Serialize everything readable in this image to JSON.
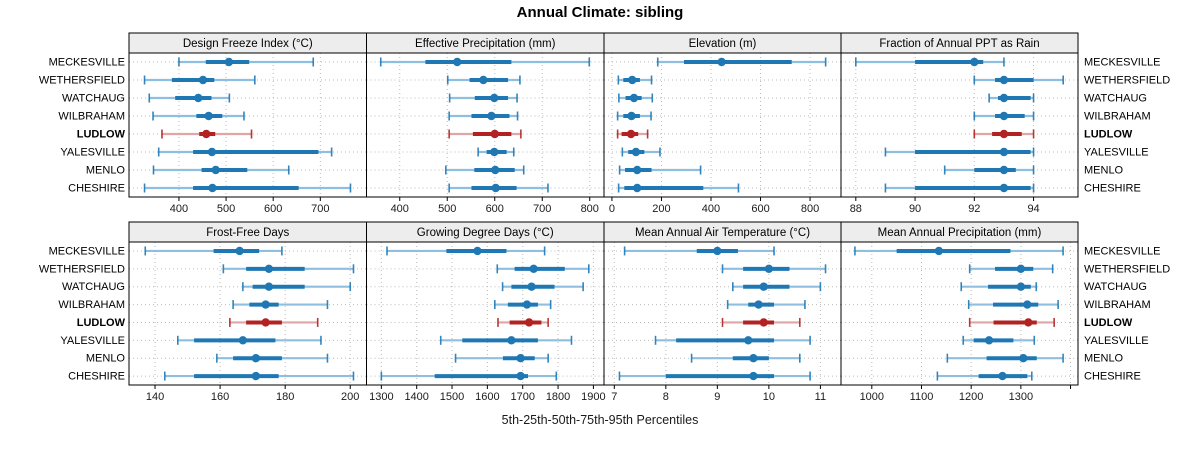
{
  "chart_data": {
    "type": "dotplot-percentiles",
    "title": "Annual Climate: sibling",
    "caption": "5th-25th-50th-75th-95th Percentiles",
    "percentiles": [
      5,
      25,
      50,
      75,
      95
    ],
    "rows_top_to_bottom": [
      "MECKESVILLE",
      "WETHERSFIELD",
      "WATCHAUG",
      "WILBRAHAM",
      "LUDLOW",
      "YALESVILLE",
      "MENLO",
      "CHESHIRE"
    ],
    "highlight_row": "LUDLOW",
    "legend_position": "none",
    "grid": "dotted",
    "colors": {
      "series": "#1f78b4",
      "series_light": "#8fbfe0",
      "highlight": "#b22222",
      "highlight_light": "#dea6a6",
      "strip_bg": "#ededed",
      "panel_border": "#000000",
      "grid": "#bbbbbb"
    },
    "panel_rows": [
      {
        "panels": [
          {
            "title": "Design Freeze Index (°C)",
            "xlim": [
              294,
              798
            ],
            "ticks": [
              400,
              500,
              600,
              700
            ],
            "unlabeled_ticks": [],
            "values": [
              [
                400,
                457,
                506,
                549,
                685
              ],
              [
                327,
                385,
                451,
                475,
                561
              ],
              [
                337,
                392,
                441,
                469,
                507
              ],
              [
                345,
                437,
                463,
                492,
                538
              ],
              [
                364,
                443,
                458,
                477,
                554
              ],
              [
                357,
                430,
                470,
                696,
                724
              ],
              [
                346,
                448,
                478,
                545,
                633
              ],
              [
                327,
                430,
                471,
                654,
                764
              ]
            ]
          },
          {
            "title": "Effective Precipitation (mm)",
            "xlim": [
              330,
              830
            ],
            "ticks": [
              400,
              500,
              600,
              700,
              800
            ],
            "unlabeled_ticks": [],
            "values": [
              [
                360,
                454,
                521,
                635,
                799
              ],
              [
                501,
                547,
                576,
                628,
                653
              ],
              [
                505,
                558,
                599,
                628,
                647
              ],
              [
                504,
                551,
                593,
                631,
                648
              ],
              [
                504,
                554,
                600,
                635,
                655
              ],
              [
                565,
                583,
                599,
                625,
                640
              ],
              [
                497,
                557,
                601,
                642,
                661
              ],
              [
                504,
                551,
                602,
                646,
                712
              ]
            ]
          },
          {
            "title": "Elevation (m)",
            "xlim": [
              -32,
              925
            ],
            "ticks": [
              0,
              200,
              400,
              600,
              800
            ],
            "unlabeled_ticks": [],
            "values": [
              [
                185,
                291,
                443,
                726,
                863
              ],
              [
                26,
                46,
                82,
                113,
                160
              ],
              [
                28,
                55,
                89,
                120,
                163
              ],
              [
                23,
                46,
                79,
                113,
                158
              ],
              [
                23,
                39,
                77,
                106,
                144
              ],
              [
                42,
                66,
                97,
                131,
                194
              ],
              [
                31,
                53,
                102,
                160,
                358
              ],
              [
                27,
                50,
                102,
                369,
                511
              ]
            ]
          },
          {
            "title": "Fraction of Annual PPT as Rain",
            "xlim": [
              87.5,
              95.5
            ],
            "ticks": [
              88,
              90,
              92,
              94
            ],
            "unlabeled_ticks": [],
            "values": [
              [
                88,
                90,
                92,
                92.3,
                93
              ],
              [
                92,
                92.7,
                93,
                94,
                95
              ],
              [
                92.5,
                92.8,
                93,
                93.9,
                94
              ],
              [
                92,
                92.7,
                93,
                93.7,
                94
              ],
              [
                92,
                92.6,
                93,
                93.6,
                94
              ],
              [
                89,
                90,
                93,
                93.9,
                94
              ],
              [
                91,
                92,
                93,
                93.4,
                94
              ],
              [
                89,
                90,
                93,
                93.9,
                94
              ]
            ]
          }
        ]
      },
      {
        "panels": [
          {
            "title": "Frost-Free Days",
            "xlim": [
              132,
              205
            ],
            "ticks": [
              140,
              160,
              180,
              200
            ],
            "unlabeled_ticks": [],
            "values": [
              [
                137,
                158,
                166,
                172,
                179
              ],
              [
                161,
                168,
                175,
                186,
                201
              ],
              [
                167,
                170,
                175,
                186,
                200
              ],
              [
                164,
                169,
                174,
                178,
                193
              ],
              [
                163,
                168,
                174,
                179,
                190
              ],
              [
                147,
                152,
                167,
                177,
                191
              ],
              [
                159,
                164,
                171,
                179,
                193
              ],
              [
                143,
                152,
                171,
                178,
                201
              ]
            ]
          },
          {
            "title": "Growing Degree Days (°C)",
            "xlim": [
              1258,
              1930
            ],
            "ticks": [
              1300,
              1400,
              1500,
              1600,
              1700,
              1800,
              1900
            ],
            "unlabeled_ticks": [],
            "values": [
              [
                1316,
                1484,
                1572,
                1654,
                1762
              ],
              [
                1628,
                1677,
                1731,
                1819,
                1887
              ],
              [
                1643,
                1668,
                1725,
                1790,
                1871
              ],
              [
                1621,
                1658,
                1712,
                1743,
                1779
              ],
              [
                1630,
                1663,
                1718,
                1753,
                1772
              ],
              [
                1468,
                1529,
                1668,
                1743,
                1838
              ],
              [
                1510,
                1644,
                1694,
                1734,
                1772
              ],
              [
                1300,
                1451,
                1694,
                1715,
                1795
              ]
            ]
          },
          {
            "title": "Mean Annual Air Temperature (°C)",
            "xlim": [
              6.8,
              11.4
            ],
            "ticks": [
              7,
              8,
              9,
              10,
              11
            ],
            "unlabeled_ticks": [],
            "values": [
              [
                7.2,
                8.6,
                9.0,
                9.4,
                10.1
              ],
              [
                9.1,
                9.5,
                10.0,
                10.4,
                11.1
              ],
              [
                9.3,
                9.5,
                9.9,
                10.4,
                11.0
              ],
              [
                9.2,
                9.6,
                9.8,
                10.1,
                10.7
              ],
              [
                9.1,
                9.5,
                9.9,
                10.1,
                10.6
              ],
              [
                7.8,
                8.2,
                9.6,
                10.1,
                10.8
              ],
              [
                8.5,
                9.3,
                9.7,
                10.0,
                10.6
              ],
              [
                7.1,
                8.0,
                9.7,
                10.1,
                10.8
              ]
            ]
          },
          {
            "title": "Mean Annual Precipitation (mm)",
            "xlim": [
              938,
              1415
            ],
            "ticks": [
              1000,
              1100,
              1200,
              1300
            ],
            "unlabeled_ticks": [
              1400
            ],
            "values": [
              [
                966,
                1050,
                1135,
                1279,
                1385
              ],
              [
                1197,
                1248,
                1300,
                1325,
                1364
              ],
              [
                1180,
                1234,
                1300,
                1320,
                1331
              ],
              [
                1195,
                1244,
                1313,
                1335,
                1375
              ],
              [
                1197,
                1245,
                1315,
                1332,
                1367
              ],
              [
                1184,
                1205,
                1236,
                1285,
                1327
              ],
              [
                1152,
                1231,
                1305,
                1332,
                1385
              ],
              [
                1132,
                1215,
                1263,
                1313,
                1322
              ]
            ]
          }
        ]
      }
    ]
  }
}
